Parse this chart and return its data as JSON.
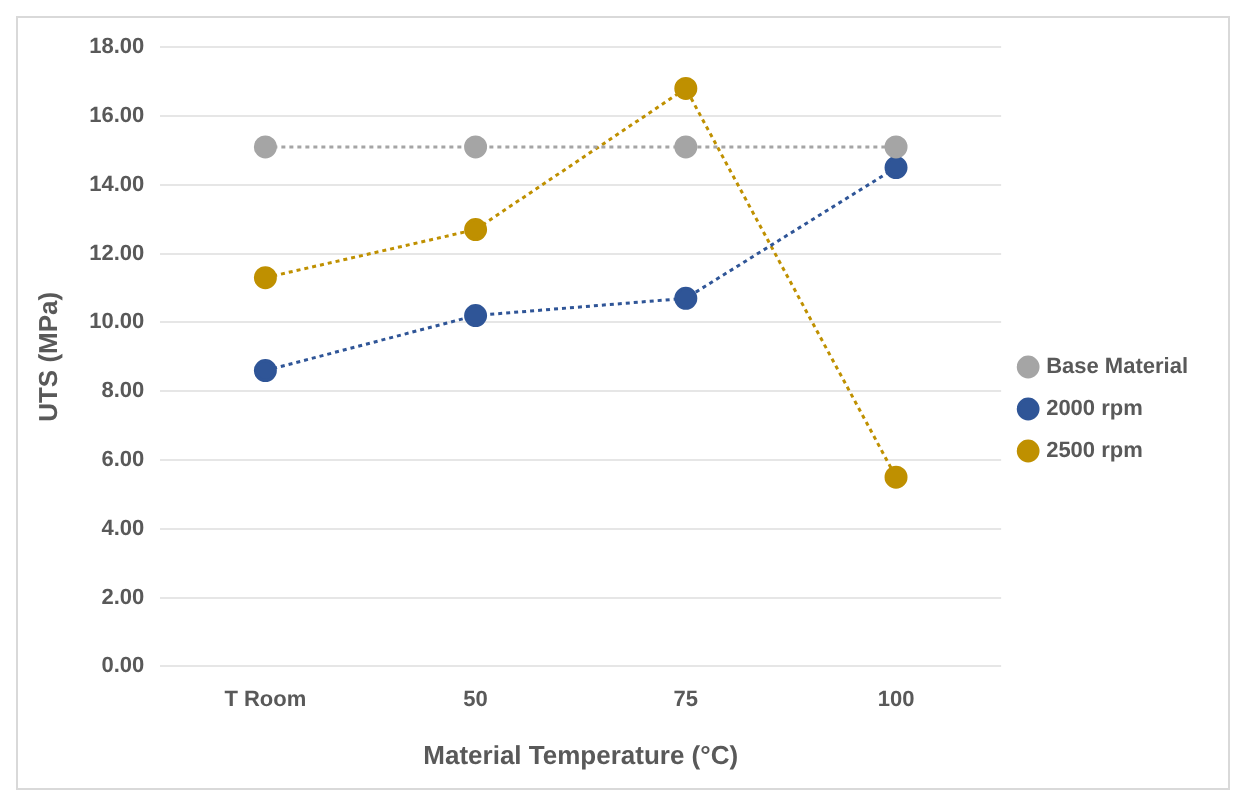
{
  "chart_data": {
    "type": "line",
    "xlabel": "Material Temperature (°C)",
    "ylabel": "UTS (MPa)",
    "categories": [
      "T Room",
      "50",
      "75",
      "100"
    ],
    "series": [
      {
        "name": "Base Material",
        "color": "#a5a5a5",
        "values": [
          15.1,
          15.1,
          15.1,
          15.1
        ]
      },
      {
        "name": "2000 rpm",
        "color": "#2f5597",
        "values": [
          8.6,
          10.2,
          10.7,
          14.5
        ]
      },
      {
        "name": "2500 rpm",
        "color": "#bf9000",
        "values": [
          11.3,
          12.7,
          16.8,
          5.5
        ]
      }
    ],
    "ylim": [
      0,
      18
    ],
    "yticks": [
      {
        "value": 0,
        "label": "0.00"
      },
      {
        "value": 2,
        "label": "2.00"
      },
      {
        "value": 4,
        "label": "4.00"
      },
      {
        "value": 6,
        "label": "6.00"
      },
      {
        "value": 8,
        "label": "8.00"
      },
      {
        "value": 10,
        "label": "10.00"
      },
      {
        "value": 12,
        "label": "12.00"
      },
      {
        "value": 14,
        "label": "14.00"
      },
      {
        "value": 16,
        "label": "16.00"
      },
      {
        "value": 18,
        "label": "18.00"
      }
    ],
    "grid": "y",
    "legend": "right",
    "marker": "circle",
    "line_style": "dotted"
  }
}
